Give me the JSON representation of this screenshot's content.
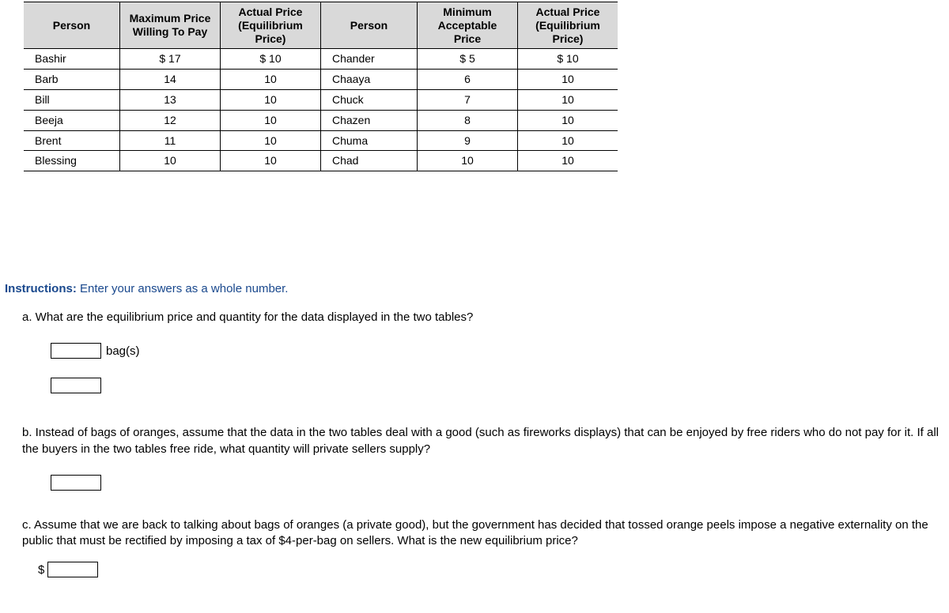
{
  "table": {
    "headers": {
      "person1": "Person",
      "maxPay": "Maximum Price Willing To Pay",
      "actual1": "Actual Price (Equilibrium Price)",
      "person2": "Person",
      "minAccept": "Minimum Acceptable Price",
      "actual2": "Actual Price (Equilibrium Price)"
    },
    "rows": [
      {
        "p1": "Bashir",
        "max": "$ 17",
        "a1": "$ 10",
        "p2": "Chander",
        "min": "$ 5",
        "a2": "$ 10"
      },
      {
        "p1": "Barb",
        "max": "14",
        "a1": "10",
        "p2": "Chaaya",
        "min": "6",
        "a2": "10"
      },
      {
        "p1": "Bill",
        "max": "13",
        "a1": "10",
        "p2": "Chuck",
        "min": "7",
        "a2": "10"
      },
      {
        "p1": "Beeja",
        "max": "12",
        "a1": "10",
        "p2": "Chazen",
        "min": "8",
        "a2": "10"
      },
      {
        "p1": "Brent",
        "max": "11",
        "a1": "10",
        "p2": "Chuma",
        "min": "9",
        "a2": "10"
      },
      {
        "p1": "Blessing",
        "max": "10",
        "a1": "10",
        "p2": "Chad",
        "min": "10",
        "a2": "10"
      }
    ]
  },
  "instructions": {
    "label": "Instructions:",
    "text": " Enter your answers as a whole number."
  },
  "qa": {
    "a": "a. What are the equilibrium price and quantity for the data displayed in the two tables?",
    "a_unit": "bag(s)",
    "b": "b. Instead of bags of oranges, assume that the data in the two tables deal with a good (such as fireworks displays) that can be enjoyed by free riders who do not pay for it. If all the buyers in the two tables free ride, what quantity will private sellers supply?",
    "c": "c. Assume that we are back to talking about bags of oranges (a private good), but the government has decided that tossed orange peels impose a negative externality on the public that must be rectified by imposing a tax of $4-per-bag on sellers. What is the new equilibrium price?",
    "dollar": "$"
  },
  "style": {
    "header_bg": "#d9d9d9",
    "link_color": "#19488d",
    "col_widths": {
      "person": 105,
      "value": 110
    },
    "font_size_table": 14,
    "font_size_body": 15
  }
}
